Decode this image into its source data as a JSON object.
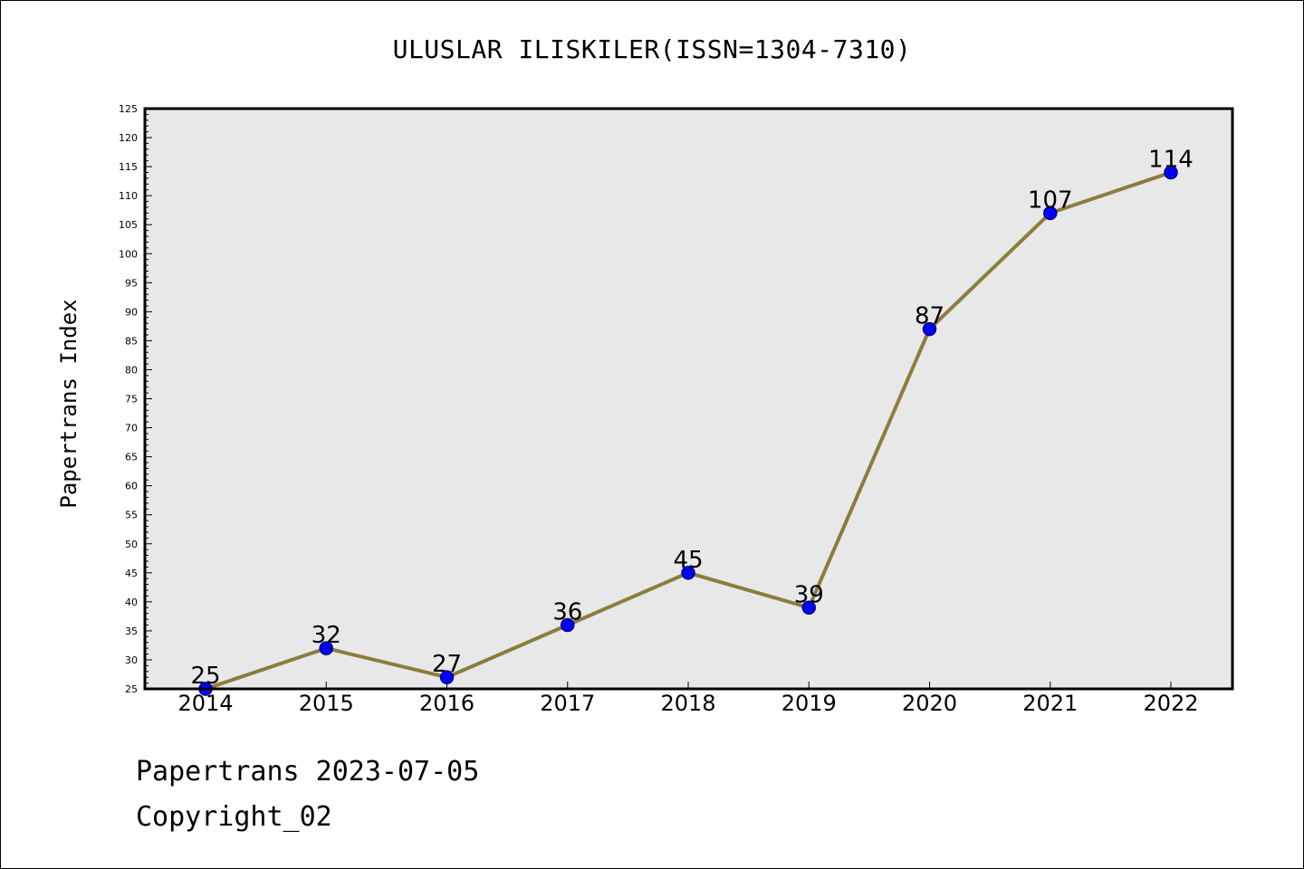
{
  "chart_data": {
    "type": "line",
    "title": "ULUSLAR ILISKILER(ISSN=1304-7310)",
    "xlabel": "",
    "ylabel": "Papertrans Index",
    "categories": [
      "2014",
      "2015",
      "2016",
      "2017",
      "2018",
      "2019",
      "2020",
      "2021",
      "2022"
    ],
    "series": [
      {
        "values": [
          25,
          32,
          27,
          36,
          45,
          39,
          87,
          107,
          114
        ]
      }
    ],
    "data_labels": [
      "25",
      "32",
      "27",
      "36",
      "45",
      "39",
      "87",
      "107",
      "114"
    ],
    "ylim": [
      25,
      125
    ],
    "y_major_step": 5,
    "y_minor_step": 1,
    "y_tick_labels": [
      "25",
      "30",
      "35",
      "40",
      "45",
      "50",
      "55",
      "60",
      "65",
      "70",
      "75",
      "80",
      "85",
      "90",
      "95",
      "100",
      "105",
      "110",
      "115",
      "120",
      "125"
    ],
    "grid": false,
    "colors": {
      "line": "#8B7D3A",
      "marker_fill": "#0000FF",
      "marker_stroke": "#00008B",
      "plot_background": "#E8E8E8",
      "axis": "#000000"
    }
  },
  "footer": {
    "date_line": "Papertrans 2023-07-05",
    "copyright_line": "Copyright_02"
  }
}
